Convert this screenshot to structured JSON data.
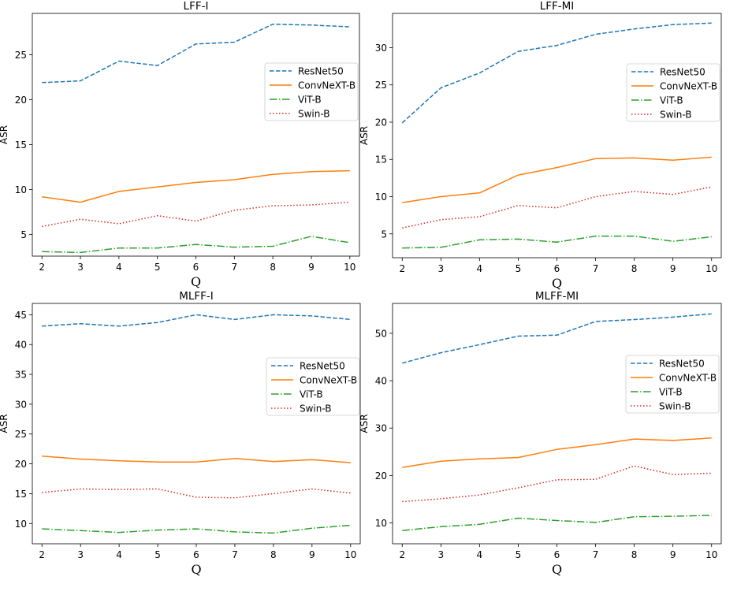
{
  "chart_data": [
    {
      "type": "line",
      "title": "LFF-I",
      "xlabel": "Q",
      "ylabel": "ASR",
      "x": [
        2,
        3,
        4,
        5,
        6,
        7,
        8,
        9,
        10
      ],
      "xlim": [
        1.75,
        10.25
      ],
      "ylim": [
        2.6,
        29.6
      ],
      "yticks": [
        5,
        10,
        15,
        20,
        25
      ],
      "legend_loc": "center-right",
      "series": [
        {
          "name": "ResNet50",
          "color": "#1f77b4",
          "dash": "dashed",
          "values": [
            21.9,
            22.1,
            24.3,
            23.8,
            26.2,
            26.4,
            28.4,
            28.3,
            28.1
          ]
        },
        {
          "name": "ConvNeXT-B",
          "color": "#ff7f0e",
          "dash": "solid",
          "values": [
            9.2,
            8.6,
            9.8,
            10.3,
            10.8,
            11.1,
            11.7,
            12.0,
            12.1
          ]
        },
        {
          "name": "ViT-B",
          "color": "#2ca02c",
          "dash": "dashdot",
          "values": [
            3.1,
            3.0,
            3.5,
            3.5,
            3.9,
            3.6,
            3.7,
            4.8,
            4.1
          ]
        },
        {
          "name": "Swin-B",
          "color": "#d62728",
          "dash": "dotted",
          "values": [
            5.9,
            6.7,
            6.2,
            7.1,
            6.5,
            7.7,
            8.2,
            8.3,
            8.6
          ]
        }
      ]
    },
    {
      "type": "line",
      "title": "LFF-MI",
      "xlabel": "Q",
      "ylabel": "ASR",
      "x": [
        2,
        3,
        4,
        5,
        6,
        7,
        8,
        9,
        10
      ],
      "xlim": [
        1.75,
        10.25
      ],
      "ylim": [
        1.8,
        34.6
      ],
      "yticks": [
        5,
        10,
        15,
        20,
        25,
        30
      ],
      "legend_loc": "center-right",
      "series": [
        {
          "name": "ResNet50",
          "color": "#1f77b4",
          "dash": "dashed",
          "values": [
            19.9,
            24.6,
            26.6,
            29.5,
            30.3,
            31.8,
            32.5,
            33.1,
            33.3
          ]
        },
        {
          "name": "ConvNeXT-B",
          "color": "#ff7f0e",
          "dash": "solid",
          "values": [
            9.2,
            10.0,
            10.5,
            12.9,
            13.9,
            15.1,
            15.2,
            14.9,
            15.3
          ]
        },
        {
          "name": "ViT-B",
          "color": "#2ca02c",
          "dash": "dashdot",
          "values": [
            3.1,
            3.2,
            4.2,
            4.3,
            3.9,
            4.7,
            4.7,
            4.0,
            4.6
          ]
        },
        {
          "name": "Swin-B",
          "color": "#d62728",
          "dash": "dotted",
          "values": [
            5.8,
            6.9,
            7.3,
            8.8,
            8.5,
            10.0,
            10.7,
            10.3,
            11.3
          ]
        }
      ]
    },
    {
      "type": "line",
      "title": "MLFF-I",
      "xlabel": "Q",
      "ylabel": "ASR",
      "x": [
        2,
        3,
        4,
        5,
        6,
        7,
        8,
        9,
        10
      ],
      "xlim": [
        1.75,
        10.25
      ],
      "ylim": [
        6.6,
        46.9
      ],
      "yticks": [
        10,
        15,
        20,
        25,
        30,
        35,
        40,
        45
      ],
      "legend_loc": "center-right",
      "series": [
        {
          "name": "ResNet50",
          "color": "#1f77b4",
          "dash": "dashed",
          "values": [
            43.1,
            43.5,
            43.1,
            43.7,
            45.0,
            44.2,
            45.0,
            44.8,
            44.2
          ]
        },
        {
          "name": "ConvNeXT-B",
          "color": "#ff7f0e",
          "dash": "solid",
          "values": [
            21.3,
            20.8,
            20.5,
            20.3,
            20.3,
            20.9,
            20.4,
            20.7,
            20.2
          ]
        },
        {
          "name": "ViT-B",
          "color": "#2ca02c",
          "dash": "dashdot",
          "values": [
            9.1,
            8.8,
            8.5,
            8.9,
            9.1,
            8.6,
            8.4,
            9.2,
            9.7
          ]
        },
        {
          "name": "Swin-B",
          "color": "#d62728",
          "dash": "dotted",
          "values": [
            15.2,
            15.8,
            15.7,
            15.8,
            14.4,
            14.3,
            15.0,
            15.8,
            15.1
          ]
        }
      ]
    },
    {
      "type": "line",
      "title": "MLFF-MI",
      "xlabel": "Q",
      "ylabel": "ASR",
      "x": [
        2,
        3,
        4,
        5,
        6,
        7,
        8,
        9,
        10
      ],
      "xlim": [
        1.75,
        10.25
      ],
      "ylim": [
        5.6,
        56.3
      ],
      "yticks": [
        10,
        20,
        30,
        40,
        50
      ],
      "legend_loc": "center-right",
      "series": [
        {
          "name": "ResNet50",
          "color": "#1f77b4",
          "dash": "dashed",
          "values": [
            43.7,
            45.9,
            47.6,
            49.4,
            49.6,
            52.5,
            52.9,
            53.4,
            54.1
          ]
        },
        {
          "name": "ConvNeXT-B",
          "color": "#ff7f0e",
          "dash": "solid",
          "values": [
            21.7,
            23.0,
            23.5,
            23.8,
            25.5,
            26.5,
            27.7,
            27.4,
            27.9
          ]
        },
        {
          "name": "ViT-B",
          "color": "#2ca02c",
          "dash": "dashdot",
          "values": [
            8.4,
            9.2,
            9.7,
            11.0,
            10.5,
            10.1,
            11.3,
            11.4,
            11.6
          ]
        },
        {
          "name": "Swin-B",
          "color": "#d62728",
          "dash": "dotted",
          "values": [
            14.5,
            15.1,
            15.9,
            17.4,
            19.1,
            19.2,
            22.0,
            20.2,
            20.5
          ]
        }
      ]
    }
  ]
}
